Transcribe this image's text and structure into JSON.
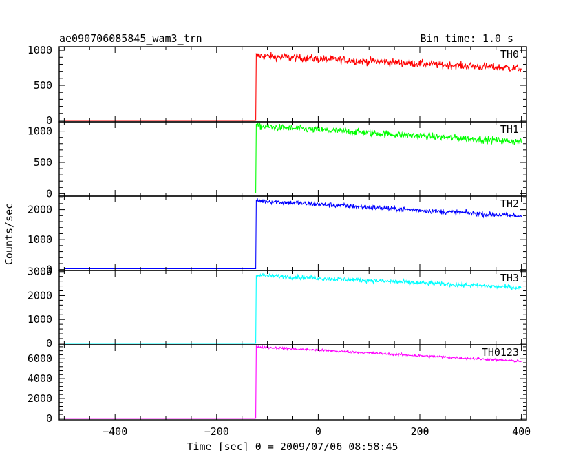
{
  "chart_data": {
    "type": "line",
    "title": "ae090706085845_wam3_trn",
    "bin_time_label": "Bin time: 1.0 s",
    "xlabel": "Time [sec] 0 = 2009/07/06 08:58:45",
    "ylabel": "Counts/sec",
    "xlim": [
      -510,
      410
    ],
    "x_ticks": [
      -400,
      -200,
      0,
      200,
      400
    ],
    "x_tick_labels": [
      "−400",
      "−200",
      "0",
      "200",
      "400"
    ],
    "trigger_time": -123,
    "data_end": 400,
    "panels": [
      {
        "name": "TH0",
        "color": "#ff0000",
        "ylim": [
          -20,
          1050
        ],
        "y_ticks": [
          0,
          500,
          1000
        ],
        "y_tick_labels": [
          "0",
          "500",
          "1000"
        ],
        "pre_level": 0,
        "post_start": 920,
        "post_end": 740,
        "noise": 55
      },
      {
        "name": "TH1",
        "color": "#00ff00",
        "ylim": [
          -40,
          1150
        ],
        "y_ticks": [
          0,
          500,
          1000
        ],
        "y_tick_labels": [
          "0",
          "500",
          "1000"
        ],
        "pre_level": 10,
        "post_start": 1080,
        "post_end": 830,
        "noise": 55
      },
      {
        "name": "TH2",
        "color": "#0000ff",
        "ylim": [
          -30,
          2450
        ],
        "y_ticks": [
          0,
          1000,
          2000
        ],
        "y_tick_labels": [
          "0",
          "1000",
          "2000"
        ],
        "pre_level": 30,
        "post_start": 2300,
        "post_end": 1780,
        "noise": 85
      },
      {
        "name": "TH3",
        "color": "#00ffff",
        "ylim": [
          -60,
          3050
        ],
        "y_ticks": [
          0,
          1000,
          2000,
          3000
        ],
        "y_tick_labels": [
          "0",
          "1000",
          "2000",
          "3000"
        ],
        "pre_level": 0,
        "post_start": 2850,
        "post_end": 2330,
        "noise": 95
      },
      {
        "name": "TH0123",
        "color": "#ff00ff",
        "ylim": [
          -150,
          7400
        ],
        "y_ticks": [
          0,
          2000,
          4000,
          6000
        ],
        "y_tick_labels": [
          "0",
          "2000",
          "4000",
          "6000"
        ],
        "pre_level": 0,
        "post_start": 7200,
        "post_end": 5750,
        "noise": 120
      }
    ]
  }
}
